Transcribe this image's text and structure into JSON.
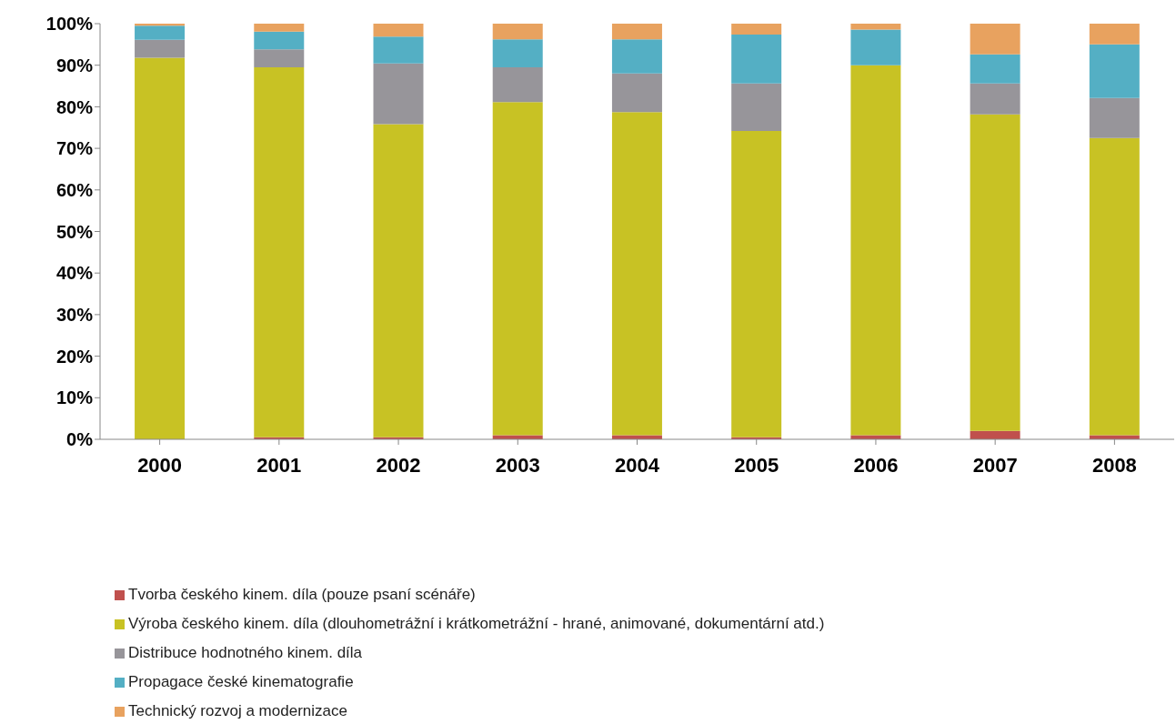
{
  "chart_data": {
    "type": "bar",
    "stacked": true,
    "categories": [
      "2000",
      "2001",
      "2002",
      "2003",
      "2004",
      "2005",
      "2006",
      "2007",
      "2008"
    ],
    "series": [
      {
        "name": "Tvorba českého kinem. díla (pouze psaní scénáře)",
        "color": "#c0504d",
        "values": [
          0,
          0.5,
          0.5,
          1,
          1,
          0.5,
          1,
          2,
          1
        ]
      },
      {
        "name": "Výroba českého kinem. díla (dlouhometrážní i krátkometrážní - hrané, animované, dokumentární atd.)",
        "color": "#c8c224",
        "values": [
          91.8,
          89,
          75.3,
          80.1,
          77.7,
          73.7,
          89,
          76.2,
          71.5
        ]
      },
      {
        "name": "Distribuce hodnotného  kinem. díla",
        "color": "#97959a",
        "values": [
          4.3,
          4.3,
          14.6,
          8.4,
          9.3,
          11.4,
          0,
          7.4,
          9.6
        ]
      },
      {
        "name": "Propagace české kinematografie",
        "color": "#54afc4",
        "values": [
          3.4,
          4.3,
          6.5,
          6.7,
          8.2,
          11.8,
          8.6,
          7,
          12.9
        ]
      },
      {
        "name": "Technický rozvoj a modernizace",
        "color": "#e8a25f",
        "values": [
          0.5,
          1.9,
          3.1,
          3.8,
          3.8,
          2.6,
          1.4,
          7.4,
          5
        ]
      }
    ],
    "ylim": [
      0,
      100
    ],
    "yticks": [
      {
        "value": 0,
        "label": "0%"
      },
      {
        "value": 10,
        "label": "10%"
      },
      {
        "value": 20,
        "label": "20%"
      },
      {
        "value": 30,
        "label": "30%"
      },
      {
        "value": 40,
        "label": "40%"
      },
      {
        "value": 50,
        "label": "50%"
      },
      {
        "value": 60,
        "label": "60%"
      },
      {
        "value": 70,
        "label": "70%"
      },
      {
        "value": 80,
        "label": "80%"
      },
      {
        "value": 90,
        "label": "90%"
      },
      {
        "value": 100,
        "label": "100%"
      }
    ],
    "grid": false,
    "legend": "bottom"
  }
}
